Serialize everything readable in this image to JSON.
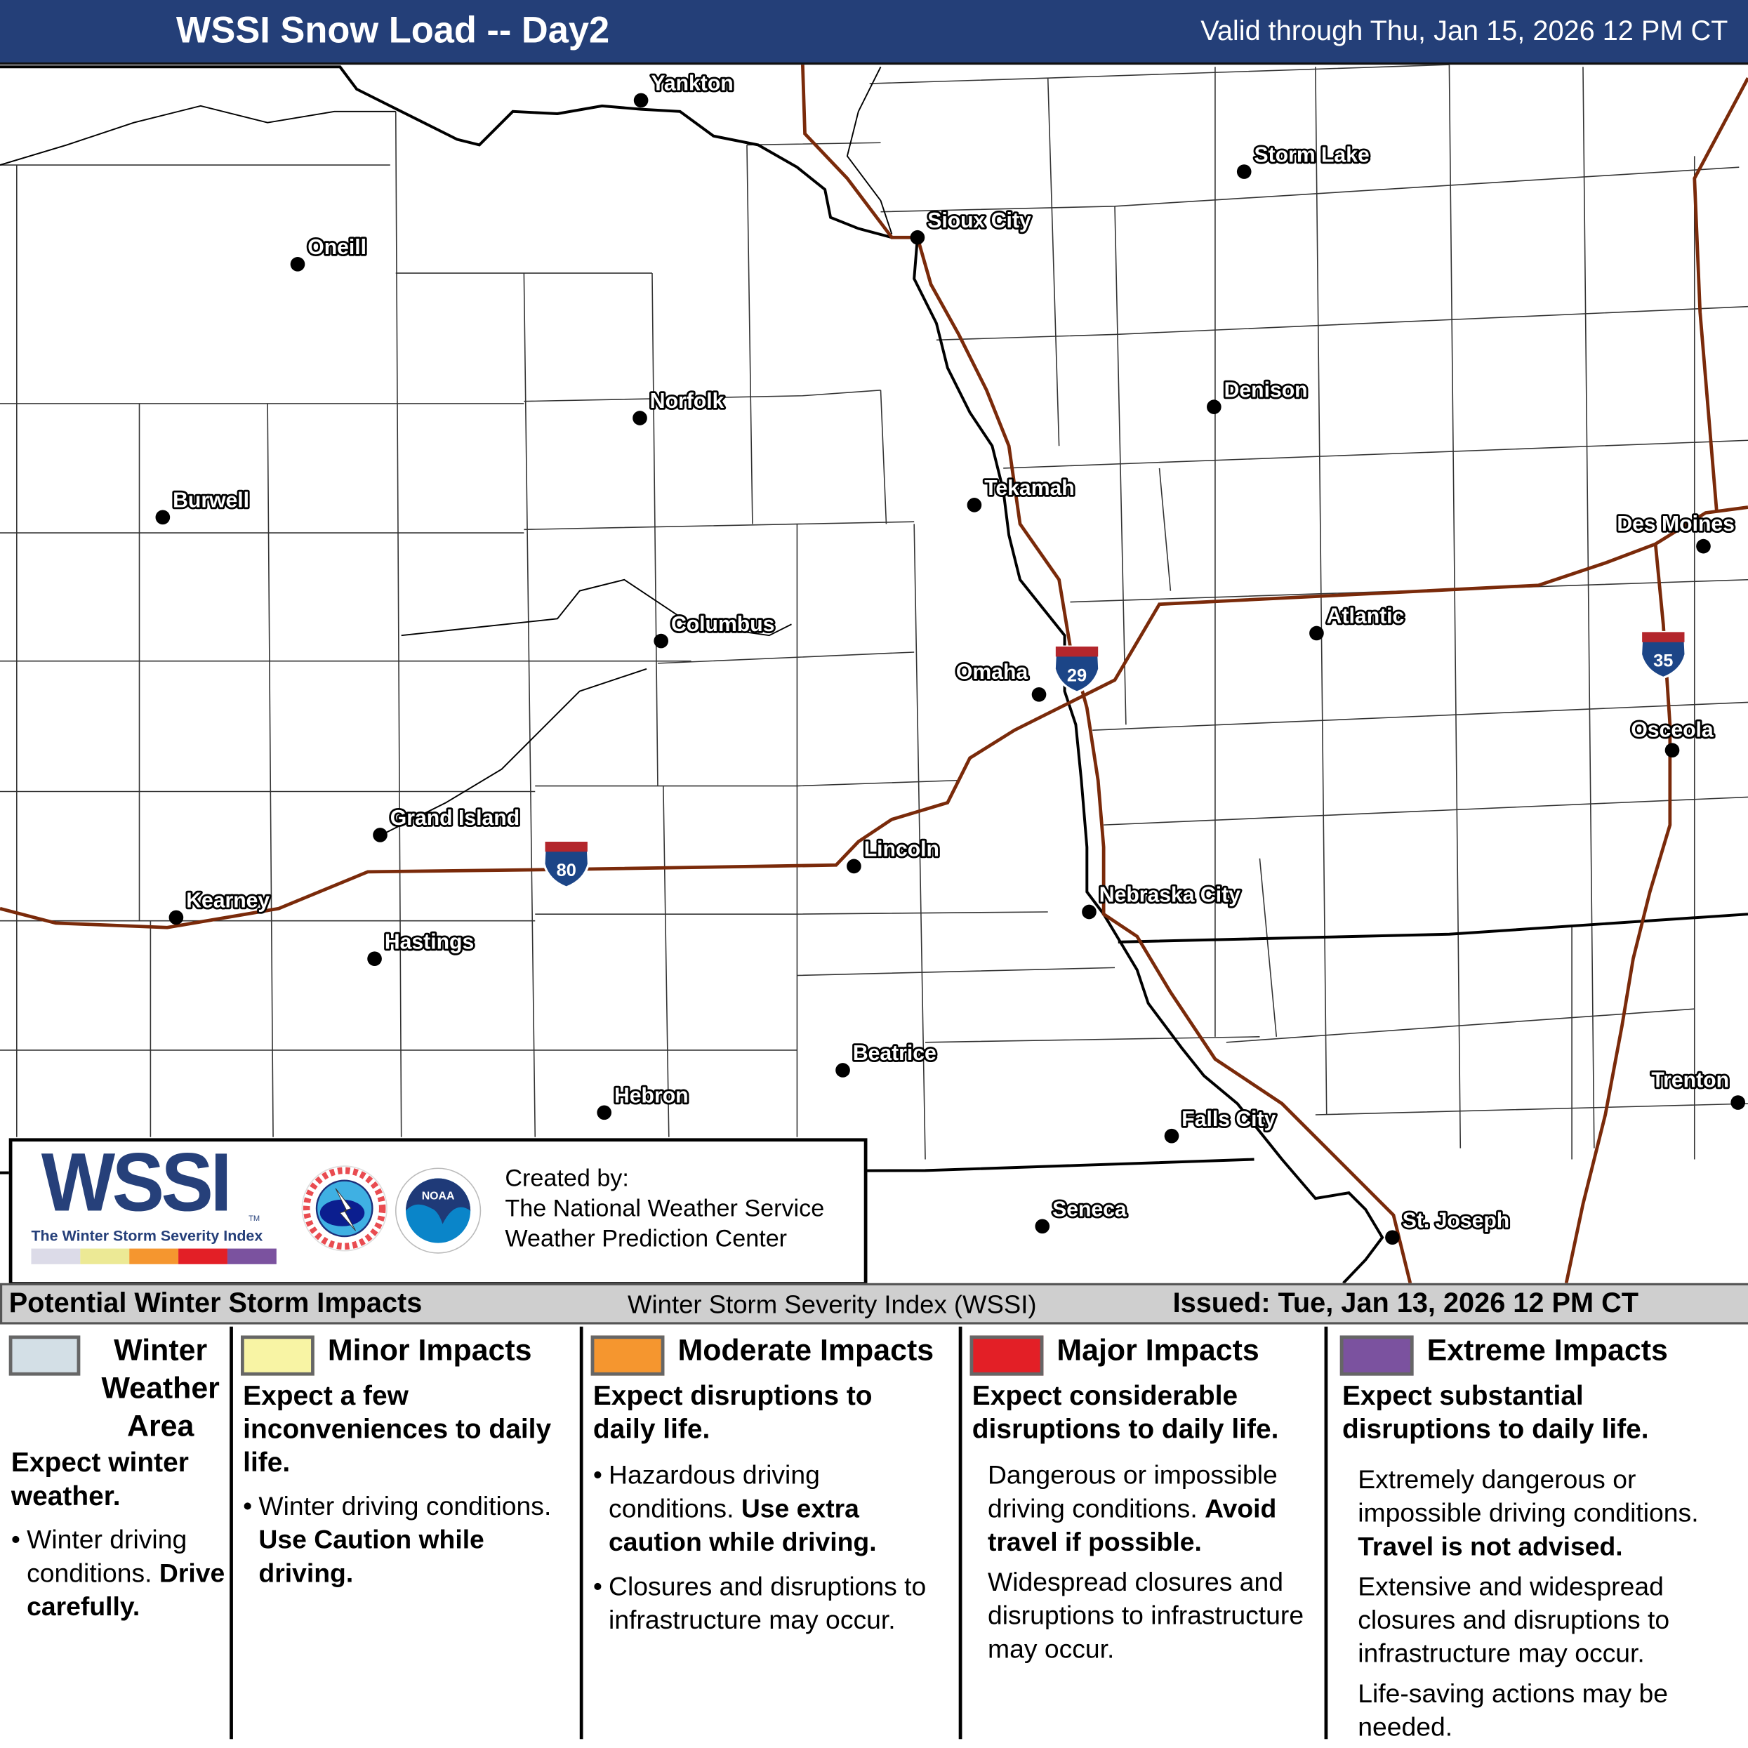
{
  "header": {
    "title": "WSSI Snow Load -- Day2",
    "valid": "Valid through Thu, Jan 15, 2026 12 PM CT"
  },
  "map": {
    "cities": [
      {
        "name": "Yankton"
      },
      {
        "name": "Storm Lake"
      },
      {
        "name": "Sioux City"
      },
      {
        "name": "Oneill"
      },
      {
        "name": "Norfolk"
      },
      {
        "name": "Denison"
      },
      {
        "name": "Tekamah"
      },
      {
        "name": "Burwell"
      },
      {
        "name": "Des Moines"
      },
      {
        "name": "Atlantic"
      },
      {
        "name": "Columbus"
      },
      {
        "name": "Omaha"
      },
      {
        "name": "Osceola"
      },
      {
        "name": "Grand Island"
      },
      {
        "name": "Lincoln"
      },
      {
        "name": "Kearney"
      },
      {
        "name": "Nebraska City"
      },
      {
        "name": "Hastings"
      },
      {
        "name": "Beatrice"
      },
      {
        "name": "Trenton"
      },
      {
        "name": "Hebron"
      },
      {
        "name": "Falls City"
      },
      {
        "name": "Seneca"
      },
      {
        "name": "St. Joseph"
      }
    ],
    "interstates": [
      "29",
      "80",
      "35"
    ],
    "colors": {
      "highway": "#7a2a0a",
      "border": "#000000",
      "county": "#222222",
      "shield_blue": "#1c4587",
      "shield_red": "#b3262c"
    }
  },
  "logo": {
    "wssi": "WSSI",
    "tm": "TM",
    "subtitle": "The Winter Storm Severity Index",
    "nws_text": "NATIONAL WEATHER SERVICE",
    "noaa_text": "NOAA",
    "credits": [
      "Created by:",
      "The National Weather Service",
      "Weather Prediction Center"
    ]
  },
  "legend": {
    "left": "Potential Winter Storm Impacts",
    "center": "Winter Storm Severity Index (WSSI)",
    "issued": "Issued: Tue, Jan 13, 2026 12 PM CT",
    "columns": [
      {
        "color": "#d3dfe6",
        "title": "Winter Weather Area",
        "subtitle": "Expect winter weather.",
        "p1": "Winter driving conditions.",
        "p1b": "Drive carefully."
      },
      {
        "color": "#f8f4a4",
        "title": "Minor Impacts",
        "subtitle": "Expect a few inconveniences to daily life.",
        "p1": "Winter driving conditions. ",
        "p1b": "Use Caution while driving."
      },
      {
        "color": "#f5962f",
        "title": "Moderate Impacts",
        "subtitle": "Expect disruptions to daily life.",
        "p1": "Hazardous driving conditions. ",
        "p1b": "Use extra caution while driving.",
        "p2": "Closures and disruptions to infrastructure may occur."
      },
      {
        "color": "#e31f26",
        "title": "Major Impacts",
        "subtitle": "Expect considerable disruptions to daily life.",
        "p1": "Dangerous or impossible driving conditions. ",
        "p1b": "Avoid travel if possible.",
        "p2": "Widespread closures and disruptions to infrastructure may occur."
      },
      {
        "color": "#7b529f",
        "title": "Extreme Impacts",
        "subtitle": "Expect substantial disruptions to daily life.",
        "p1": "Extremely dangerous or impossible driving conditions. ",
        "p1b": "Travel is not advised.",
        "p2": "Extensive and widespread closures and disruptions to infrastructure may occur.",
        "p3": "Life-saving actions may be needed."
      }
    ]
  }
}
